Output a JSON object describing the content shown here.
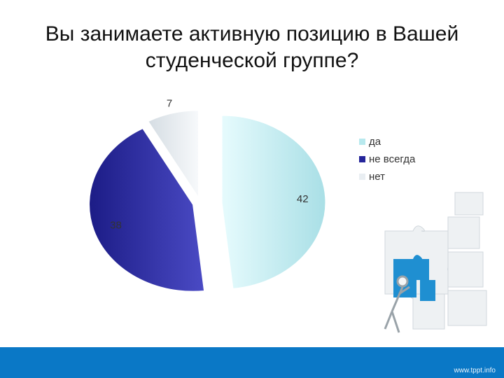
{
  "title": {
    "line1": "Вы занимаете активную позицию в Вашей",
    "line2": "студенческой группе?"
  },
  "chart_data": {
    "type": "pie",
    "categories": [
      "да",
      "не всегда",
      "нет"
    ],
    "values": [
      42,
      38,
      7
    ],
    "colors": [
      "#b8e9ee",
      "#25259a",
      "#e9eef2"
    ],
    "legend_position": "right",
    "exploded": true
  },
  "footer": {
    "brand": "www.tppt.info"
  },
  "decoration": {
    "icon": "puzzle-figure-icon"
  }
}
